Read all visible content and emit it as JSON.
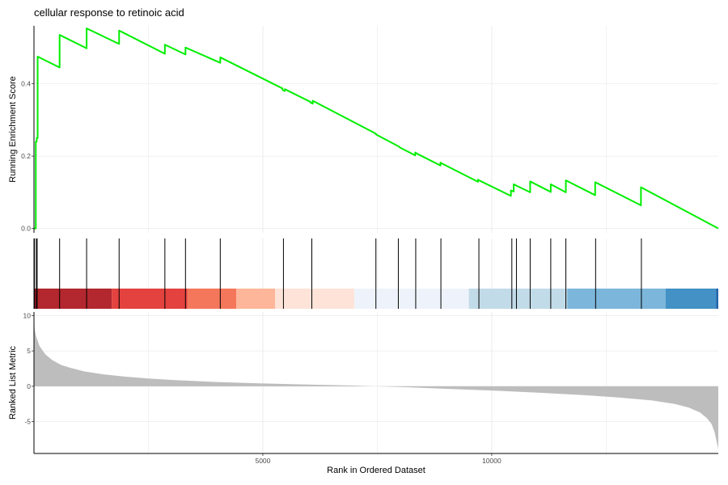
{
  "chart_data": {
    "type": "line",
    "title": "cellular response to retinoic acid",
    "xlabel": "Rank in Ordered Dataset",
    "xlim": [
      0,
      14950
    ],
    "x_ticks": [
      5000,
      10000
    ],
    "x_tick_labels": [
      "5000",
      "10000"
    ],
    "grid": true,
    "panels": [
      {
        "name": "running-enrichment",
        "ylabel": "Running Enrichment Score",
        "ylim": [
          -0.012,
          0.56
        ],
        "y_ticks": [
          0.0,
          0.2,
          0.4
        ],
        "y_tick_labels": [
          "0.0",
          "0.2",
          "0.4"
        ],
        "series": [
          {
            "color": "#00ee00",
            "x": [
              0,
              40,
              40,
              60,
              60,
              80,
              80,
              560,
              560,
              1150,
              1150,
              1860,
              1860,
              2860,
              2860,
              3310,
              3310,
              4070,
              4070,
              5430,
              5430,
              5480,
              5480,
              6040,
              6040,
              6090,
              6090,
              7470,
              7470,
              7950,
              7950,
              7990,
              7990,
              8330,
              8330,
              8380,
              8380,
              8880,
              8880,
              8920,
              8920,
              9700,
              9700,
              9740,
              9740,
              10420,
              10420,
              10480,
              10480,
              10560,
              10560,
              10840,
              10840,
              11290,
              11290,
              11620,
              11620,
              12260,
              12260,
              13260,
              13260,
              14950
            ],
            "y": [
              0.0,
              0.0,
              0.24,
              0.24,
              0.25,
              0.25,
              0.475,
              0.445,
              0.535,
              0.498,
              0.553,
              0.51,
              0.547,
              0.483,
              0.508,
              0.481,
              0.5,
              0.458,
              0.473,
              0.387,
              0.383,
              0.38,
              0.385,
              0.35,
              0.348,
              0.345,
              0.353,
              0.262,
              0.26,
              0.228,
              0.228,
              0.225,
              0.224,
              0.202,
              0.21,
              0.206,
              0.206,
              0.174,
              0.182,
              0.179,
              0.179,
              0.129,
              0.135,
              0.132,
              0.132,
              0.09,
              0.105,
              0.102,
              0.122,
              0.117,
              0.117,
              0.1,
              0.13,
              0.101,
              0.122,
              0.1,
              0.133,
              0.092,
              0.128,
              0.064,
              0.114,
              0.0
            ]
          }
        ]
      },
      {
        "name": "hit-positions",
        "type": "rug",
        "x": [
          10,
          50,
          70,
          560,
          1150,
          1860,
          2860,
          3310,
          4070,
          5450,
          6070,
          7470,
          7960,
          8340,
          8890,
          9720,
          10440,
          10540,
          10840,
          11290,
          11620,
          12270,
          13270
        ],
        "color_bands": [
          {
            "from": 0,
            "to": 60,
            "color": "#b2182b"
          },
          {
            "from": 60,
            "to": 1700,
            "color": "#b2282e"
          },
          {
            "from": 1700,
            "to": 3350,
            "color": "#e3423e"
          },
          {
            "from": 3350,
            "to": 4420,
            "color": "#f5775b"
          },
          {
            "from": 4420,
            "to": 5270,
            "color": "#fdb69a"
          },
          {
            "from": 5270,
            "to": 7000,
            "color": "#fde3d8"
          },
          {
            "from": 7000,
            "to": 9500,
            "color": "#eef3fb"
          },
          {
            "from": 9500,
            "to": 11650,
            "color": "#c2dbe9"
          },
          {
            "from": 11650,
            "to": 13800,
            "color": "#7cb6da"
          },
          {
            "from": 13800,
            "to": 14900,
            "color": "#4391c5"
          },
          {
            "from": 14900,
            "to": 14950,
            "color": "#2166ac"
          }
        ]
      },
      {
        "name": "ranked-list-metric",
        "type": "area",
        "ylabel": "Ranked List Metric",
        "ylim": [
          -9.5,
          10.5
        ],
        "y_ticks": [
          -5,
          0,
          5,
          10
        ],
        "y_tick_labels": [
          "-5",
          "0",
          "5",
          "10"
        ],
        "color": "#bdbdbd",
        "x": [
          0,
          15,
          50,
          120,
          250,
          400,
          600,
          800,
          1100,
          1500,
          2000,
          2500,
          3000,
          4000,
          5000,
          6000,
          7000,
          7450,
          8000,
          9000,
          10000,
          11000,
          12000,
          12800,
          13500,
          14000,
          14300,
          14550,
          14700,
          14800,
          14870,
          14920,
          14950
        ],
        "y": [
          9.8,
          8.0,
          7.0,
          5.7,
          4.5,
          3.7,
          3.0,
          2.6,
          2.1,
          1.7,
          1.35,
          1.1,
          0.9,
          0.6,
          0.4,
          0.25,
          0.1,
          0.0,
          -0.1,
          -0.35,
          -0.6,
          -0.9,
          -1.25,
          -1.6,
          -2.0,
          -2.5,
          -3.0,
          -3.7,
          -4.5,
          -5.3,
          -6.5,
          -8.0,
          -8.8
        ]
      }
    ]
  }
}
